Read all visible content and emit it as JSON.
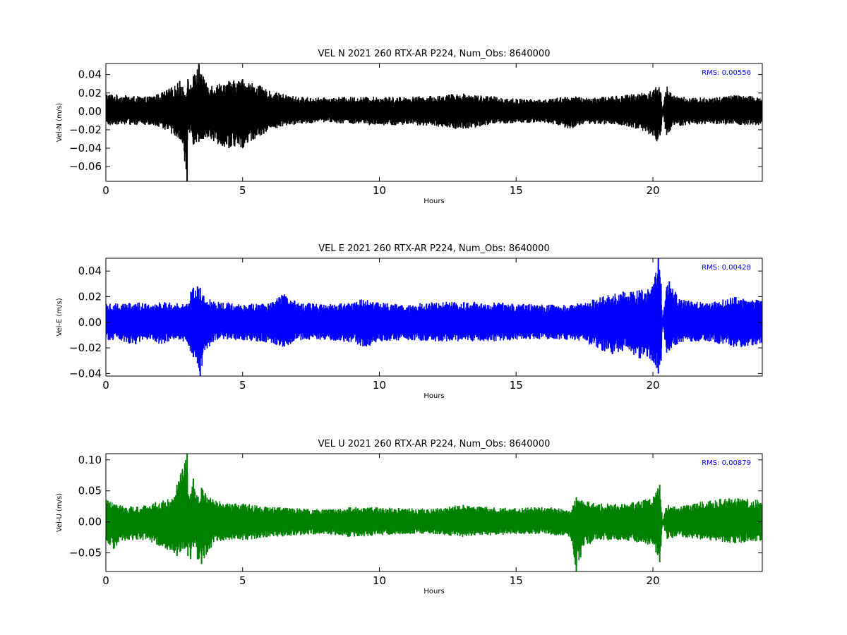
{
  "chart_data": [
    {
      "type": "line",
      "title": "VEL N 2021 260 RTX-AR  P224, Num_Obs: 8640000",
      "xlabel": "Hours",
      "ylabel": "Vel-N (m/s)",
      "xlim": [
        0,
        24
      ],
      "ylim": [
        -0.076,
        0.052
      ],
      "x_ticks": [
        0,
        5,
        10,
        15,
        20
      ],
      "x_tick_labels": [
        "0",
        "5",
        "10",
        "15",
        "20"
      ],
      "y_ticks": [
        0.04,
        0.02,
        0.0,
        -0.02,
        -0.04,
        -0.06
      ],
      "y_tick_labels": [
        "0.04",
        "0.02",
        "0.00",
        "−0.02",
        "−0.04",
        "−0.06"
      ],
      "color": "#000000",
      "annotation": "RMS:  0.00556",
      "annotation_color": "#0000ff",
      "series": [
        {
          "x": [
            0,
            0.5,
            1.0,
            1.5,
            2.0,
            2.5,
            2.7,
            2.97,
            3.0,
            3.1,
            3.2,
            3.4,
            3.5,
            3.8,
            4.0,
            4.5,
            5.0,
            5.5,
            6.0,
            7.0,
            8.0,
            9.0,
            10.0,
            11.0,
            12.0,
            13.0,
            14.0,
            15.0,
            16.0,
            17.0,
            17.5,
            18.0,
            19.0,
            19.5,
            20.0,
            20.2,
            20.3,
            20.35,
            20.5,
            20.7,
            21.0,
            22.0,
            23.0,
            24.0
          ],
          "upper": [
            0.02,
            0.018,
            0.017,
            0.016,
            0.02,
            0.028,
            0.033,
            0.02,
            0.035,
            0.03,
            0.038,
            0.052,
            0.04,
            0.03,
            0.03,
            0.033,
            0.035,
            0.03,
            0.022,
            0.016,
            0.015,
            0.016,
            0.016,
            0.016,
            0.017,
            0.02,
            0.017,
            0.014,
            0.013,
            0.017,
            0.015,
            0.016,
            0.018,
            0.02,
            0.024,
            0.03,
            0.022,
            0.001,
            0.028,
            0.02,
            0.016,
            0.015,
            0.018,
            0.016
          ],
          "lower": [
            -0.016,
            -0.014,
            -0.015,
            -0.015,
            -0.018,
            -0.026,
            -0.03,
            -0.076,
            -0.02,
            -0.025,
            -0.036,
            -0.033,
            -0.03,
            -0.03,
            -0.035,
            -0.04,
            -0.04,
            -0.03,
            -0.02,
            -0.014,
            -0.012,
            -0.014,
            -0.016,
            -0.015,
            -0.016,
            -0.02,
            -0.015,
            -0.013,
            -0.012,
            -0.02,
            -0.014,
            -0.014,
            -0.016,
            -0.02,
            -0.028,
            -0.035,
            -0.025,
            0.001,
            -0.032,
            -0.018,
            -0.016,
            -0.014,
            -0.015,
            -0.015
          ]
        }
      ]
    },
    {
      "type": "line",
      "title": "VEL E 2021 260 RTX-AR  P224, Num_Obs: 8640000",
      "xlabel": "Hours",
      "ylabel": "Vel-E (m/s)",
      "xlim": [
        0,
        24
      ],
      "ylim": [
        -0.042,
        0.05
      ],
      "x_ticks": [
        0,
        5,
        10,
        15,
        20
      ],
      "x_tick_labels": [
        "0",
        "5",
        "10",
        "15",
        "20"
      ],
      "y_ticks": [
        0.04,
        0.02,
        0.0,
        -0.02,
        -0.04
      ],
      "y_tick_labels": [
        "0.04",
        "0.02",
        "0.00",
        "−0.02",
        "−0.04"
      ],
      "color": "#0000ff",
      "annotation": "RMS:  0.00428",
      "annotation_color": "#0000ff",
      "series": [
        {
          "x": [
            0,
            0.5,
            1.0,
            1.5,
            2.0,
            2.5,
            3.0,
            3.1,
            3.2,
            3.35,
            3.45,
            3.6,
            4.0,
            5.0,
            6.0,
            6.5,
            7.0,
            8.0,
            9.0,
            9.5,
            10.0,
            11.0,
            12.0,
            13.0,
            14.0,
            15.0,
            16.0,
            17.0,
            17.5,
            18.0,
            18.5,
            19.0,
            19.5,
            20.0,
            20.2,
            20.3,
            20.35,
            20.5,
            20.6,
            21.0,
            22.0,
            23.0,
            24.0
          ],
          "upper": [
            0.016,
            0.015,
            0.016,
            0.015,
            0.016,
            0.015,
            0.016,
            0.026,
            0.027,
            0.028,
            0.027,
            0.02,
            0.016,
            0.015,
            0.015,
            0.023,
            0.016,
            0.014,
            0.016,
            0.019,
            0.016,
            0.014,
            0.016,
            0.016,
            0.016,
            0.015,
            0.014,
            0.014,
            0.016,
            0.02,
            0.022,
            0.025,
            0.025,
            0.028,
            0.05,
            0.03,
            0.001,
            0.03,
            0.032,
            0.018,
            0.015,
            0.02,
            0.017
          ],
          "lower": [
            -0.014,
            -0.014,
            -0.018,
            -0.014,
            -0.018,
            -0.014,
            -0.016,
            -0.024,
            -0.027,
            -0.032,
            -0.042,
            -0.025,
            -0.014,
            -0.014,
            -0.016,
            -0.02,
            -0.014,
            -0.014,
            -0.016,
            -0.02,
            -0.015,
            -0.014,
            -0.015,
            -0.015,
            -0.015,
            -0.014,
            -0.013,
            -0.014,
            -0.015,
            -0.022,
            -0.025,
            -0.022,
            -0.028,
            -0.03,
            -0.04,
            -0.03,
            0.001,
            -0.025,
            -0.022,
            -0.016,
            -0.015,
            -0.02,
            -0.018
          ]
        }
      ]
    },
    {
      "type": "line",
      "title": "VEL U 2021 260 RTX-AR  P224, Num_Obs: 8640000",
      "xlabel": "Hours",
      "ylabel": "Vel-U (m/s)",
      "xlim": [
        0,
        24
      ],
      "ylim": [
        -0.08,
        0.11
      ],
      "x_ticks": [
        0,
        5,
        10,
        15,
        20
      ],
      "x_tick_labels": [
        "0",
        "5",
        "10",
        "15",
        "20"
      ],
      "y_ticks": [
        0.1,
        0.05,
        0.0,
        -0.05
      ],
      "y_tick_labels": [
        "0.10",
        "0.05",
        "0.00",
        "−0.05"
      ],
      "color": "#008000",
      "annotation": "RMS:  0.00879",
      "annotation_color": "#0000ff",
      "series": [
        {
          "x": [
            0,
            0.3,
            0.5,
            1.0,
            1.5,
            2.0,
            2.5,
            2.6,
            2.97,
            3.0,
            3.1,
            3.2,
            3.35,
            3.5,
            3.8,
            4.0,
            4.5,
            5.0,
            6.0,
            7.0,
            8.0,
            9.0,
            10.0,
            11.0,
            12.0,
            13.0,
            14.0,
            15.0,
            16.0,
            17.0,
            17.2,
            17.5,
            18.0,
            19.0,
            19.5,
            20.0,
            20.25,
            20.3,
            20.35,
            20.5,
            21.0,
            22.0,
            23.0,
            24.0
          ],
          "upper": [
            0.04,
            0.03,
            0.028,
            0.025,
            0.028,
            0.035,
            0.04,
            0.06,
            0.11,
            0.045,
            0.045,
            0.07,
            0.04,
            0.055,
            0.04,
            0.035,
            0.03,
            0.03,
            0.025,
            0.022,
            0.02,
            0.024,
            0.024,
            0.022,
            0.022,
            0.028,
            0.025,
            0.022,
            0.025,
            0.02,
            0.04,
            0.035,
            0.03,
            0.03,
            0.035,
            0.04,
            0.06,
            0.04,
            0.001,
            0.028,
            0.025,
            0.035,
            0.04,
            0.035
          ],
          "lower": [
            -0.03,
            -0.045,
            -0.032,
            -0.03,
            -0.03,
            -0.04,
            -0.05,
            -0.055,
            -0.04,
            -0.055,
            -0.06,
            -0.04,
            -0.06,
            -0.068,
            -0.045,
            -0.035,
            -0.03,
            -0.03,
            -0.025,
            -0.022,
            -0.02,
            -0.025,
            -0.022,
            -0.02,
            -0.02,
            -0.025,
            -0.022,
            -0.02,
            -0.02,
            -0.025,
            -0.08,
            -0.04,
            -0.03,
            -0.03,
            -0.035,
            -0.04,
            -0.065,
            -0.045,
            0.001,
            -0.028,
            -0.025,
            -0.03,
            -0.035,
            -0.03
          ]
        }
      ]
    }
  ]
}
